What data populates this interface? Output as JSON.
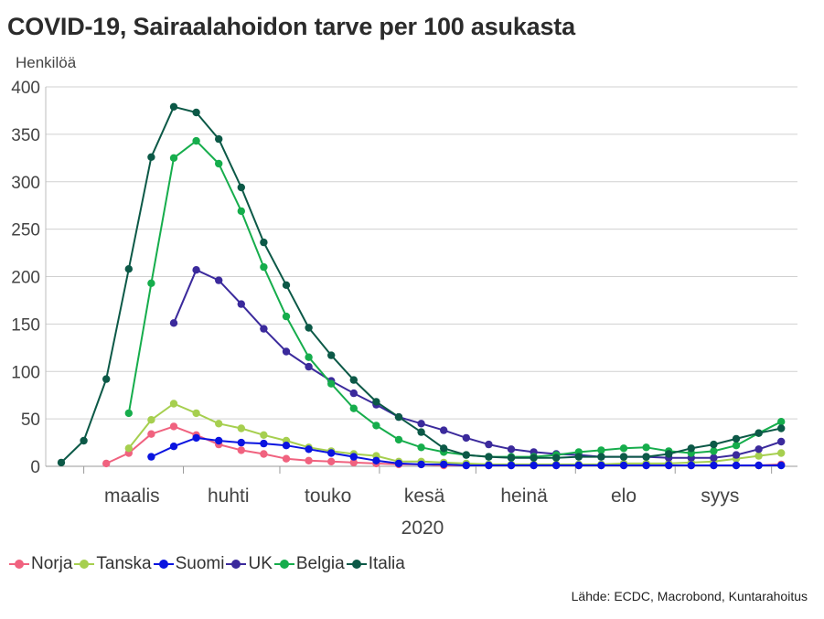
{
  "title": "COVID-19, Sairaalahoidon tarve per 100 asukasta",
  "source": "Lähde: ECDC, Macrobond, Kuntarahoitus",
  "chart_data": {
    "type": "line",
    "title": "COVID-19, Sairaalahoidon tarve per 100 asukasta",
    "ylabel": "Henkilöä",
    "xlabel": "2020",
    "ylim": [
      0,
      400
    ],
    "yticks": [
      0,
      50,
      100,
      150,
      200,
      250,
      300,
      350,
      400
    ],
    "grid": true,
    "legend_position": "bottom",
    "month_labels": [
      "maalis",
      "huhti",
      "touko",
      "kesä",
      "heinä",
      "elo",
      "syys"
    ],
    "x": [
      "2020-02-23",
      "2020-03-01",
      "2020-03-08",
      "2020-03-15",
      "2020-03-22",
      "2020-03-29",
      "2020-04-05",
      "2020-04-12",
      "2020-04-19",
      "2020-04-26",
      "2020-05-03",
      "2020-05-10",
      "2020-05-17",
      "2020-05-24",
      "2020-05-31",
      "2020-06-07",
      "2020-06-14",
      "2020-06-21",
      "2020-06-28",
      "2020-07-05",
      "2020-07-12",
      "2020-07-19",
      "2020-07-26",
      "2020-08-02",
      "2020-08-09",
      "2020-08-16",
      "2020-08-23",
      "2020-08-30",
      "2020-09-06",
      "2020-09-13",
      "2020-09-20",
      "2020-09-27",
      "2020-10-04"
    ],
    "series": [
      {
        "name": "Norja",
        "color": "#f0627f",
        "values": [
          null,
          null,
          3,
          14,
          34,
          42,
          33,
          23,
          17,
          13,
          8,
          6,
          5,
          4,
          3,
          2,
          2,
          1,
          1,
          1,
          1,
          1,
          1,
          1,
          1,
          1,
          1,
          1,
          1,
          1,
          1,
          1,
          2
        ]
      },
      {
        "name": "Tanska",
        "color": "#a6cf4f",
        "values": [
          null,
          null,
          null,
          19,
          49,
          66,
          56,
          45,
          40,
          33,
          27,
          20,
          16,
          13,
          11,
          5,
          5,
          4,
          3,
          2,
          2,
          2,
          2,
          2,
          2,
          3,
          3,
          3,
          4,
          5,
          8,
          11,
          14
        ]
      },
      {
        "name": "Suomi",
        "color": "#0a14e0",
        "values": [
          null,
          null,
          null,
          null,
          10,
          21,
          30,
          27,
          25,
          24,
          22,
          18,
          14,
          10,
          6,
          3,
          2,
          2,
          1,
          1,
          1,
          1,
          1,
          1,
          1,
          1,
          1,
          1,
          1,
          1,
          1,
          1,
          1
        ]
      },
      {
        "name": "UK",
        "color": "#3b2a9c",
        "values": [
          null,
          null,
          null,
          null,
          null,
          151,
          207,
          196,
          171,
          145,
          121,
          105,
          90,
          77,
          65,
          52,
          45,
          38,
          30,
          23,
          18,
          15,
          13,
          12,
          10,
          10,
          10,
          9,
          9,
          9,
          12,
          18,
          26
        ]
      },
      {
        "name": "Belgia",
        "color": "#16ad4c",
        "values": [
          null,
          null,
          null,
          56,
          193,
          325,
          343,
          319,
          269,
          210,
          158,
          115,
          87,
          61,
          43,
          28,
          20,
          15,
          12,
          10,
          10,
          10,
          12,
          15,
          17,
          19,
          20,
          16,
          14,
          16,
          22,
          35,
          47
        ]
      },
      {
        "name": "Italia",
        "color": "#0c5947",
        "values": [
          4,
          27,
          92,
          208,
          326,
          379,
          373,
          345,
          294,
          236,
          191,
          146,
          117,
          91,
          68,
          52,
          36,
          19,
          12,
          10,
          9,
          9,
          9,
          10,
          10,
          10,
          10,
          13,
          19,
          23,
          29,
          35,
          40
        ]
      }
    ]
  }
}
